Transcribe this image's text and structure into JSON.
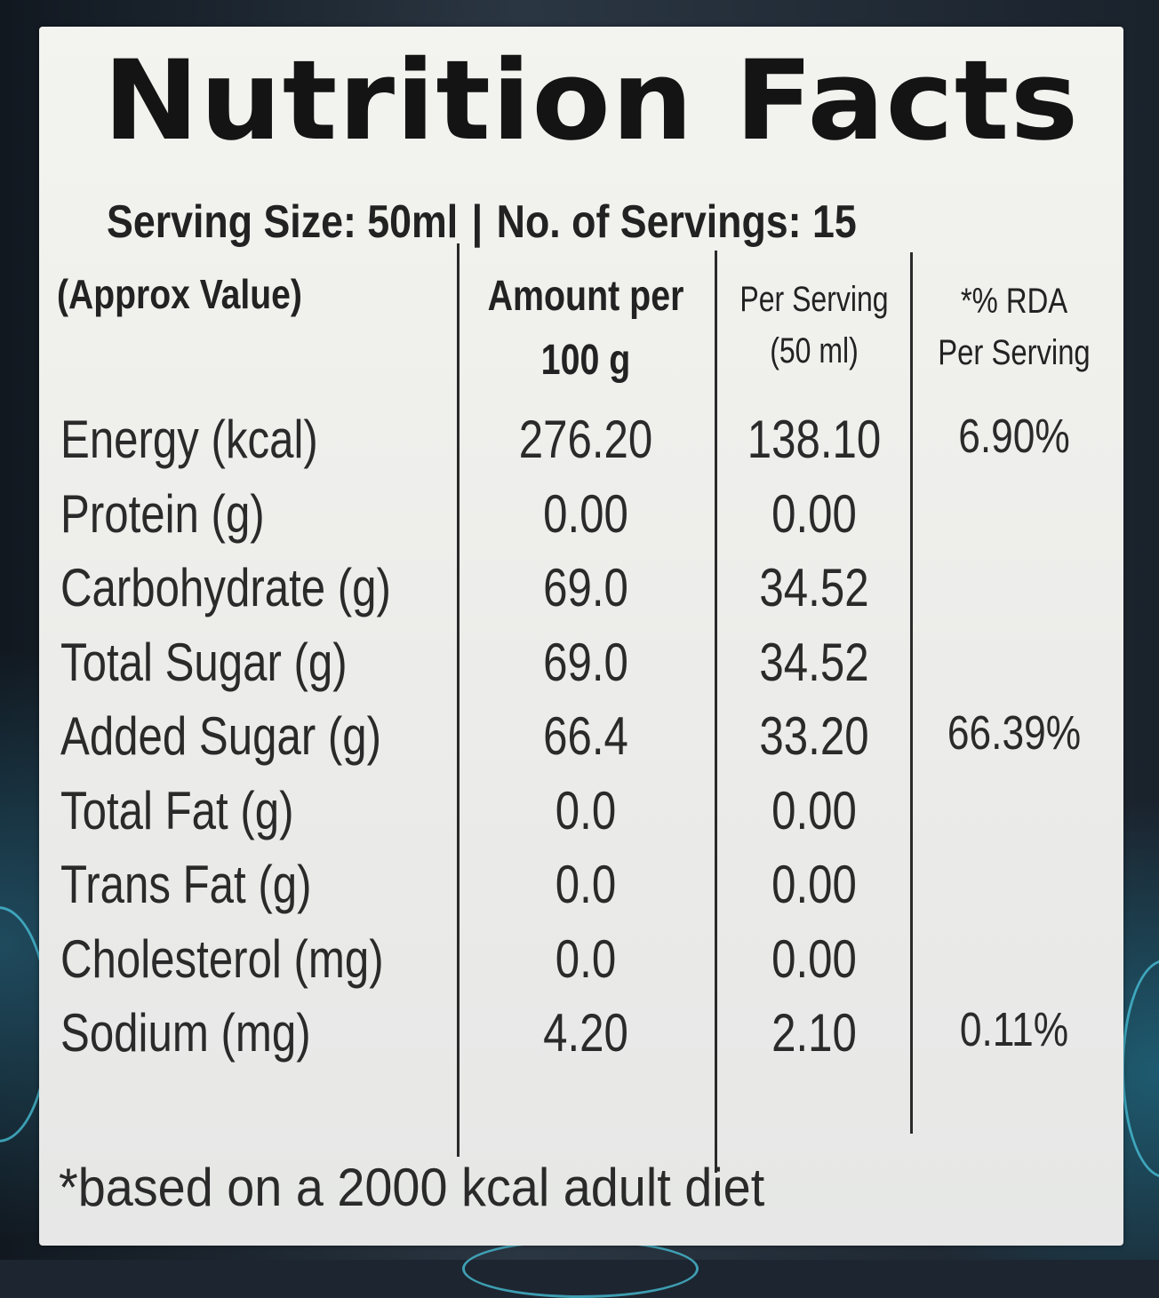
{
  "label": {
    "title": "Nutrition Facts",
    "serving_size": "Serving Size: 50ml",
    "separator": "|",
    "servings": "No. of Servings: 15",
    "columns": {
      "nutrient": "(Approx Value)",
      "per_100g_line1": "Amount per",
      "per_100g_line2": "100 g",
      "per_serving_line1": "Per Serving",
      "per_serving_line2": "(50 ml)",
      "rda_line1": "*% RDA",
      "rda_line2": "Per Serving"
    },
    "rows": [
      {
        "name": "Energy (kcal)",
        "per_100g": "276.20",
        "per_serving": "138.10",
        "rda": "6.90%"
      },
      {
        "name": "Protein (g)",
        "per_100g": "0.00",
        "per_serving": "0.00",
        "rda": ""
      },
      {
        "name": "Carbohydrate (g)",
        "per_100g": "69.0",
        "per_serving": "34.52",
        "rda": ""
      },
      {
        "name": "Total Sugar (g)",
        "per_100g": "69.0",
        "per_serving": "34.52",
        "rda": ""
      },
      {
        "name": "Added Sugar (g)",
        "per_100g": "66.4",
        "per_serving": "33.20",
        "rda": "66.39%"
      },
      {
        "name": "Total Fat (g)",
        "per_100g": "0.0",
        "per_serving": "0.00",
        "rda": ""
      },
      {
        "name": "Trans Fat (g)",
        "per_100g": "0.0",
        "per_serving": "0.00",
        "rda": ""
      },
      {
        "name": "Cholesterol (mg)",
        "per_100g": "0.0",
        "per_serving": "0.00",
        "rda": ""
      },
      {
        "name": "Sodium (mg)",
        "per_100g": "4.20",
        "per_serving": "2.10",
        "rda": "0.11%"
      }
    ],
    "footnote": "*based on a 2000 kcal adult diet"
  },
  "colors": {
    "label_bg": "#f0f0ec",
    "text": "#2a2a2a",
    "bottle_dark": "#1c2530",
    "bottle_accent": "#49c6de"
  }
}
